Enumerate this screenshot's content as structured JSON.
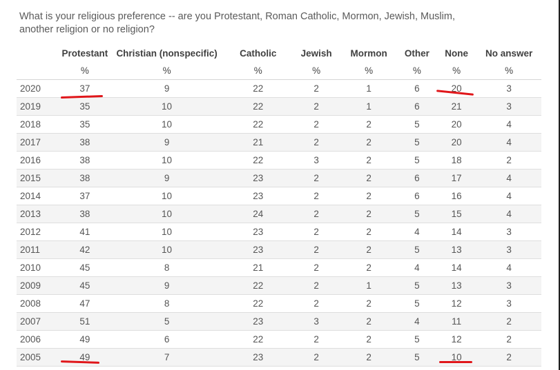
{
  "question": "What is your religious preference -- are you Protestant, Roman Catholic, Mormon, Jewish, Muslim, another religion or no religion?",
  "columns": [
    "",
    "Protestant",
    "Christian (nonspecific)",
    "Catholic",
    "Jewish",
    "Mormon",
    "Other",
    "None",
    "No answer"
  ],
  "units": [
    "",
    "%",
    "%",
    "%",
    "%",
    "%",
    "%",
    "%",
    "%"
  ],
  "rows": [
    [
      "2020",
      "37",
      "9",
      "22",
      "2",
      "1",
      "6",
      "20",
      "3"
    ],
    [
      "2019",
      "35",
      "10",
      "22",
      "2",
      "1",
      "6",
      "21",
      "3"
    ],
    [
      "2018",
      "35",
      "10",
      "22",
      "2",
      "2",
      "5",
      "20",
      "4"
    ],
    [
      "2017",
      "38",
      "9",
      "21",
      "2",
      "2",
      "5",
      "20",
      "4"
    ],
    [
      "2016",
      "38",
      "10",
      "22",
      "3",
      "2",
      "5",
      "18",
      "2"
    ],
    [
      "2015",
      "38",
      "9",
      "23",
      "2",
      "2",
      "6",
      "17",
      "4"
    ],
    [
      "2014",
      "37",
      "10",
      "23",
      "2",
      "2",
      "6",
      "16",
      "4"
    ],
    [
      "2013",
      "38",
      "10",
      "24",
      "2",
      "2",
      "5",
      "15",
      "4"
    ],
    [
      "2012",
      "41",
      "10",
      "23",
      "2",
      "2",
      "4",
      "14",
      "3"
    ],
    [
      "2011",
      "42",
      "10",
      "23",
      "2",
      "2",
      "5",
      "13",
      "3"
    ],
    [
      "2010",
      "45",
      "8",
      "21",
      "2",
      "2",
      "4",
      "14",
      "4"
    ],
    [
      "2009",
      "45",
      "9",
      "22",
      "2",
      "1",
      "5",
      "13",
      "3"
    ],
    [
      "2008",
      "47",
      "8",
      "22",
      "2",
      "2",
      "5",
      "12",
      "3"
    ],
    [
      "2007",
      "51",
      "5",
      "23",
      "3",
      "2",
      "4",
      "11",
      "2"
    ],
    [
      "2006",
      "49",
      "6",
      "22",
      "2",
      "2",
      "5",
      "12",
      "2"
    ],
    [
      "2005",
      "49",
      "7",
      "23",
      "2",
      "2",
      "5",
      "10",
      "2"
    ]
  ],
  "colors": {
    "annotation": "#e0161a",
    "row_stripe": "#f4f4f4",
    "border": "#1f1f1f"
  }
}
